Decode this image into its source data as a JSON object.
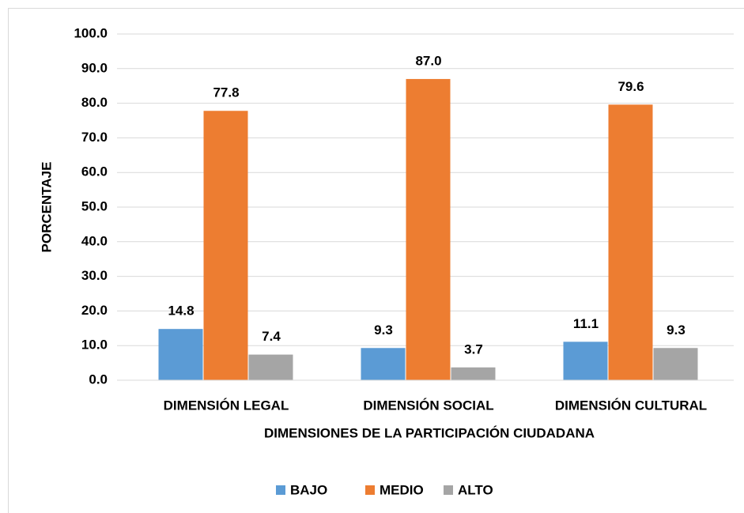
{
  "chart_data": {
    "type": "bar",
    "x_label": "DIMENSIONES DE LA PARTICIPACIÓN CIUDADANA",
    "y_label": "PORCENTAJE",
    "categories": [
      "DIMENSIÓN LEGAL",
      "DIMENSIÓN SOCIAL",
      "DIMENSIÓN CULTURAL"
    ],
    "series": [
      {
        "name": "BAJO",
        "color": "#5b9bd5",
        "values": [
          14.8,
          9.3,
          11.1
        ],
        "value_labels": [
          "14.8",
          "9.3",
          "11.1"
        ]
      },
      {
        "name": "MEDIO",
        "color": "#ed7d31",
        "values": [
          77.8,
          87.0,
          79.6
        ],
        "value_labels": [
          "77.8",
          "87.0",
          "79.6"
        ]
      },
      {
        "name": "ALTO",
        "color": "#a5a5a5",
        "values": [
          7.4,
          3.7,
          9.3
        ],
        "value_labels": [
          "7.4",
          "3.7",
          "9.3"
        ]
      }
    ],
    "ylim": [
      0,
      100
    ],
    "yticks": [
      {
        "value": 0,
        "label": "0.0"
      },
      {
        "value": 10,
        "label": "10.0"
      },
      {
        "value": 20,
        "label": "20.0"
      },
      {
        "value": 30,
        "label": "30.0"
      },
      {
        "value": 40,
        "label": "40.0"
      },
      {
        "value": 50,
        "label": "50.0"
      },
      {
        "value": 60,
        "label": "60.0"
      },
      {
        "value": 70,
        "label": "70.0"
      },
      {
        "value": 80,
        "label": "80.0"
      },
      {
        "value": 90,
        "label": "90.0"
      },
      {
        "value": 100,
        "label": "100.0"
      }
    ],
    "grid": true,
    "legend": "bottom"
  }
}
